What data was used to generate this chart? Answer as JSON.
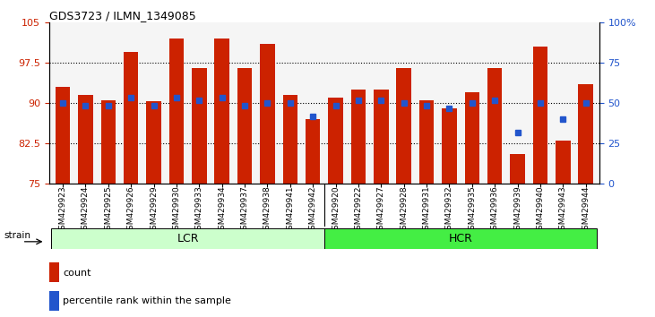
{
  "title": "GDS3723 / ILMN_1349085",
  "categories": [
    "GSM429923",
    "GSM429924",
    "GSM429925",
    "GSM429926",
    "GSM429929",
    "GSM429930",
    "GSM429933",
    "GSM429934",
    "GSM429937",
    "GSM429938",
    "GSM429941",
    "GSM429942",
    "GSM429920",
    "GSM429922",
    "GSM429927",
    "GSM429928",
    "GSM429931",
    "GSM429932",
    "GSM429935",
    "GSM429936",
    "GSM429939",
    "GSM429940",
    "GSM429943",
    "GSM429944"
  ],
  "red_values": [
    93.0,
    91.5,
    90.5,
    99.5,
    90.3,
    102.0,
    96.5,
    102.0,
    96.5,
    101.0,
    91.5,
    87.0,
    91.0,
    92.5,
    92.5,
    96.5,
    90.5,
    89.0,
    92.0,
    96.5,
    80.5,
    100.5,
    83.0,
    93.5
  ],
  "blue_values": [
    90.0,
    89.5,
    89.5,
    91.0,
    89.5,
    91.0,
    90.5,
    91.0,
    89.5,
    90.0,
    90.0,
    87.5,
    89.5,
    90.5,
    90.5,
    90.0,
    89.5,
    89.0,
    90.0,
    90.5,
    84.5,
    90.0,
    87.0,
    90.0
  ],
  "group_labels": [
    "LCR",
    "HCR"
  ],
  "group_sizes": [
    12,
    12
  ],
  "ylim": [
    75,
    105
  ],
  "yticks": [
    75,
    82.5,
    90,
    97.5,
    105
  ],
  "ytick_labels": [
    "75",
    "82.5",
    "90",
    "97.5",
    "105"
  ],
  "y2tick_labels": [
    "0",
    "25",
    "50",
    "75",
    "100%"
  ],
  "dotted_lines": [
    82.5,
    90.0,
    97.5
  ],
  "bar_color": "#cc2200",
  "blue_color": "#2255cc",
  "bg_color": "#ffffff",
  "axis_label_color_left": "#cc2200",
  "axis_label_color_right": "#2255cc",
  "lcr_color": "#ccffcc",
  "hcr_color": "#44ee44",
  "baseline": 75,
  "bar_width": 0.65
}
